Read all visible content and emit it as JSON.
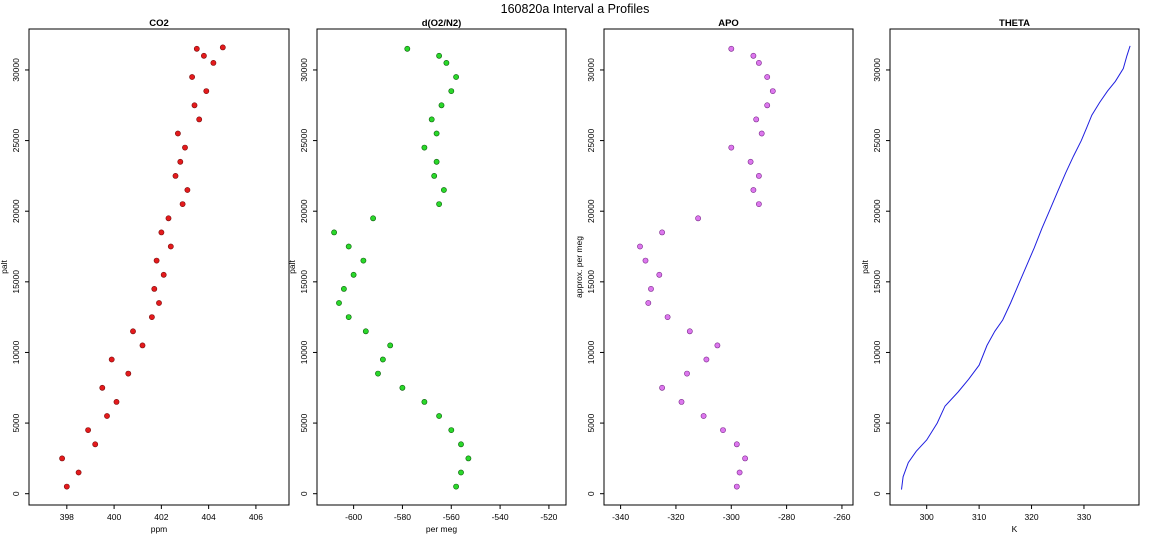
{
  "figure": {
    "title": "160820a   Interval a Profiles"
  },
  "chart_data": [
    {
      "type": "scatter",
      "title": "CO2",
      "xlabel": "ppm",
      "ylabel": "palt",
      "xlim": [
        396.4,
        407.4
      ],
      "ylim": [
        -800,
        32900
      ],
      "xticks": [
        398,
        400,
        402,
        404,
        406
      ],
      "yticks": [
        0,
        5000,
        10000,
        15000,
        20000,
        25000,
        30000
      ],
      "color": "#e41a1c",
      "outline": "#7a0c0c",
      "series": [
        {
          "x": [
            398.0,
            398.5,
            397.8,
            399.2,
            398.9,
            399.7,
            400.1,
            399.5,
            400.6,
            399.9,
            401.2,
            400.8,
            401.6,
            401.9,
            401.7,
            402.1,
            401.8,
            402.4,
            402.0,
            402.3,
            402.9,
            403.1,
            402.6,
            402.8,
            403.0,
            402.7,
            403.6,
            403.4,
            403.9,
            403.3,
            404.2,
            403.8,
            403.5,
            404.6
          ],
          "y": [
            500,
            1500,
            2500,
            3500,
            4500,
            5500,
            6500,
            7500,
            8500,
            9500,
            10500,
            11500,
            12500,
            13500,
            14500,
            15500,
            16500,
            17500,
            18500,
            19500,
            20500,
            21500,
            22500,
            23500,
            24500,
            25500,
            26500,
            27500,
            28500,
            29500,
            30500,
            31000,
            31500,
            31600
          ]
        }
      ]
    },
    {
      "type": "scatter",
      "title": "d(O2/N2)",
      "xlabel": "per meg",
      "ylabel": "palt",
      "xlim": [
        -615,
        -513
      ],
      "ylim": [
        -800,
        32900
      ],
      "xticks": [
        -600,
        -580,
        -560,
        -540,
        -520
      ],
      "yticks": [
        0,
        5000,
        10000,
        15000,
        20000,
        25000,
        30000
      ],
      "color": "#2ad82a",
      "outline": "#0b5e0b",
      "series": [
        {
          "x": [
            -558,
            -556,
            -553,
            -556,
            -560,
            -565,
            -571,
            -580,
            -590,
            -588,
            -585,
            -595,
            -602,
            -606,
            -604,
            -600,
            -596,
            -602,
            -608,
            -592,
            -565,
            -563,
            -567,
            -566,
            -571,
            -566,
            -568,
            -564,
            -560,
            -558,
            -562,
            -565,
            -578
          ],
          "y": [
            500,
            1500,
            2500,
            3500,
            4500,
            5500,
            6500,
            7500,
            8500,
            9500,
            10500,
            11500,
            12500,
            13500,
            14500,
            15500,
            16500,
            17500,
            18500,
            19500,
            20500,
            21500,
            22500,
            23500,
            24500,
            25500,
            26500,
            27500,
            28500,
            29500,
            30500,
            31000,
            31500
          ]
        }
      ]
    },
    {
      "type": "scatter",
      "title": "APO",
      "xlabel": "",
      "ylabel": "approx. per meg",
      "xlim": [
        -346,
        -256
      ],
      "ylim": [
        -800,
        32900
      ],
      "xticks": [
        -340,
        -320,
        -300,
        -280,
        -260
      ],
      "yticks": [
        0,
        5000,
        10000,
        15000,
        20000,
        25000,
        30000
      ],
      "color": "#dd77ee",
      "outline": "#7a2a8a",
      "series": [
        {
          "x": [
            -298,
            -297,
            -295,
            -298,
            -303,
            -310,
            -318,
            -325,
            -316,
            -309,
            -305,
            -315,
            -323,
            -330,
            -329,
            -326,
            -331,
            -333,
            -325,
            -312,
            -290,
            -292,
            -290,
            -293,
            -300,
            -289,
            -291,
            -287,
            -285,
            -287,
            -290,
            -292,
            -300
          ],
          "y": [
            500,
            1500,
            2500,
            3500,
            4500,
            5500,
            6500,
            7500,
            8500,
            9500,
            10500,
            11500,
            12500,
            13500,
            14500,
            15500,
            16500,
            17500,
            18500,
            19500,
            20500,
            21500,
            22500,
            23500,
            24500,
            25500,
            26500,
            27500,
            28500,
            29500,
            30500,
            31000,
            31500
          ]
        }
      ]
    },
    {
      "type": "line",
      "title": "THETA",
      "xlabel": "K",
      "ylabel": "palt",
      "xlim": [
        293.0,
        340.5
      ],
      "ylim": [
        -800,
        32900
      ],
      "xticks": [
        300,
        310,
        320,
        330
      ],
      "yticks": [
        0,
        5000,
        10000,
        15000,
        20000,
        25000,
        30000
      ],
      "color": "#1f1fe0",
      "series": [
        {
          "x": [
            295.2,
            295.5,
            296.5,
            298.0,
            300.0,
            302.0,
            303.5,
            306.0,
            308.0,
            310.0,
            311.5,
            313.0,
            314.5,
            316.0,
            317.5,
            319.0,
            320.5,
            322.0,
            323.5,
            325.0,
            326.5,
            328.0,
            329.5,
            330.5,
            331.5,
            333.0,
            334.5,
            336.0,
            337.5,
            338.2,
            338.8
          ],
          "y": [
            300,
            1200,
            2200,
            3000,
            3800,
            5000,
            6200,
            7200,
            8100,
            9100,
            10500,
            11500,
            12300,
            13500,
            14800,
            16100,
            17400,
            18800,
            20100,
            21400,
            22700,
            23900,
            25000,
            25900,
            26800,
            27700,
            28500,
            29200,
            30100,
            31000,
            31700
          ]
        }
      ]
    }
  ]
}
